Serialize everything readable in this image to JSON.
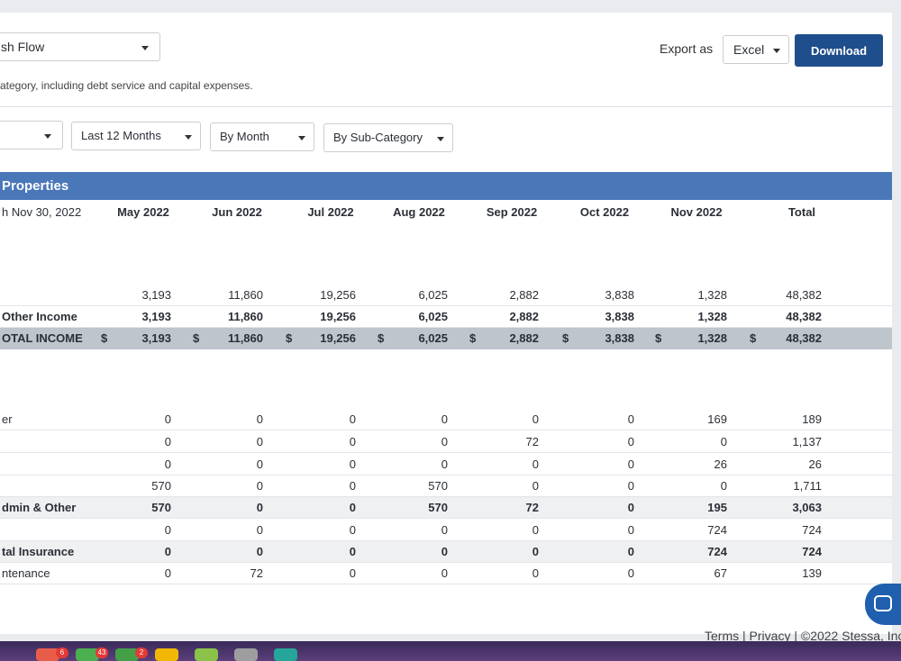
{
  "header": {
    "report_type": "sh Flow",
    "export_label": "Export as",
    "export_format": "Excel",
    "download_label": "Download",
    "description": "ategory, including debt service and capital expenses."
  },
  "filters": {
    "first": "",
    "range": "Last 12 Months",
    "grouping": "By Month",
    "breakdown": "By Sub-Category"
  },
  "table": {
    "band_title": "Properties",
    "period_label": "h Nov 30, 2022",
    "columns": [
      "May 2022",
      "Jun 2022",
      "Jul 2022",
      "Aug 2022",
      "Sep 2022",
      "Oct 2022",
      "Nov 2022",
      "Total"
    ],
    "currency_symbol": "$",
    "income_rows": [
      {
        "label": "",
        "values": [
          "3,193",
          "11,860",
          "19,256",
          "6,025",
          "2,882",
          "3,838",
          "1,328",
          "48,382"
        ]
      },
      {
        "label": "Other Income",
        "values": [
          "3,193",
          "11,860",
          "19,256",
          "6,025",
          "2,882",
          "3,838",
          "1,328",
          "48,382"
        ]
      },
      {
        "label": "OTAL INCOME",
        "values": [
          "3,193",
          "11,860",
          "19,256",
          "6,025",
          "2,882",
          "3,838",
          "1,328",
          "48,382"
        ]
      }
    ],
    "expense_rows": [
      {
        "label": "er",
        "values": [
          "0",
          "0",
          "0",
          "0",
          "0",
          "0",
          "169",
          "189"
        ]
      },
      {
        "label": "",
        "values": [
          "0",
          "0",
          "0",
          "0",
          "72",
          "0",
          "0",
          "1,137"
        ]
      },
      {
        "label": "",
        "values": [
          "0",
          "0",
          "0",
          "0",
          "0",
          "0",
          "26",
          "26"
        ]
      },
      {
        "label": "",
        "values": [
          "570",
          "0",
          "0",
          "570",
          "0",
          "0",
          "0",
          "1,711"
        ]
      },
      {
        "label": "dmin & Other",
        "values": [
          "570",
          "0",
          "0",
          "570",
          "72",
          "0",
          "195",
          "3,063"
        ]
      },
      {
        "label": "",
        "values": [
          "0",
          "0",
          "0",
          "0",
          "0",
          "0",
          "724",
          "724"
        ]
      },
      {
        "label": "tal Insurance",
        "values": [
          "0",
          "0",
          "0",
          "0",
          "0",
          "0",
          "724",
          "724"
        ]
      },
      {
        "label": "ntenance",
        "values": [
          "0",
          "72",
          "0",
          "0",
          "0",
          "0",
          "67",
          "139"
        ]
      }
    ]
  },
  "footer": {
    "terms": "Terms",
    "privacy": "Privacy",
    "copyright": "©2022 Stessa, Inc"
  },
  "dock_badges": [
    "6",
    "43",
    "2"
  ]
}
